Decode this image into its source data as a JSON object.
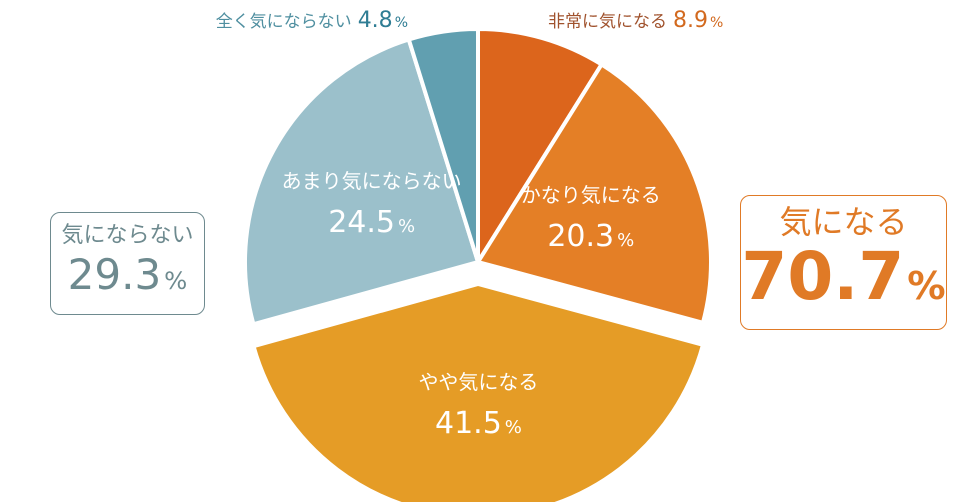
{
  "chart_data": {
    "type": "pie",
    "slices": [
      {
        "label": "非常に気になる",
        "value": 8.9,
        "display": "8.9",
        "color": "#dc651c",
        "label_placement": "outside"
      },
      {
        "label": "かなり気になる",
        "value": 20.3,
        "display": "20.3",
        "color": "#e47f26",
        "label_placement": "inside"
      },
      {
        "label": "やや気になる",
        "value": 41.5,
        "display": "41.5",
        "color": "#e59c26",
        "label_placement": "inside"
      },
      {
        "label": "あまり気にならない",
        "value": 24.5,
        "display": "24.5",
        "color": "#9bc0cb",
        "label_placement": "inside"
      },
      {
        "label": "全く気にならない",
        "value": 4.8,
        "display": "4.8",
        "color": "#619fb0",
        "label_placement": "outside"
      }
    ],
    "percent_sign": "%",
    "start_angle": "12 o'clock",
    "direction": "clockwise",
    "exploded_slice": "やや気になる"
  },
  "summary_left": {
    "label": "気にならない",
    "value": "29.3",
    "unit": "%",
    "color": "#6e8a8f"
  },
  "summary_right": {
    "label": "気になる",
    "value": "70.7",
    "unit": "%",
    "color": "#e07a26"
  },
  "colors": {
    "inside_text": "#ffffff",
    "outside_text_orange": "#a0522d",
    "outside_text_teal": "#4f8fa0",
    "outside_value_orange": "#d2691e",
    "outside_value_teal": "#2f7d94"
  }
}
